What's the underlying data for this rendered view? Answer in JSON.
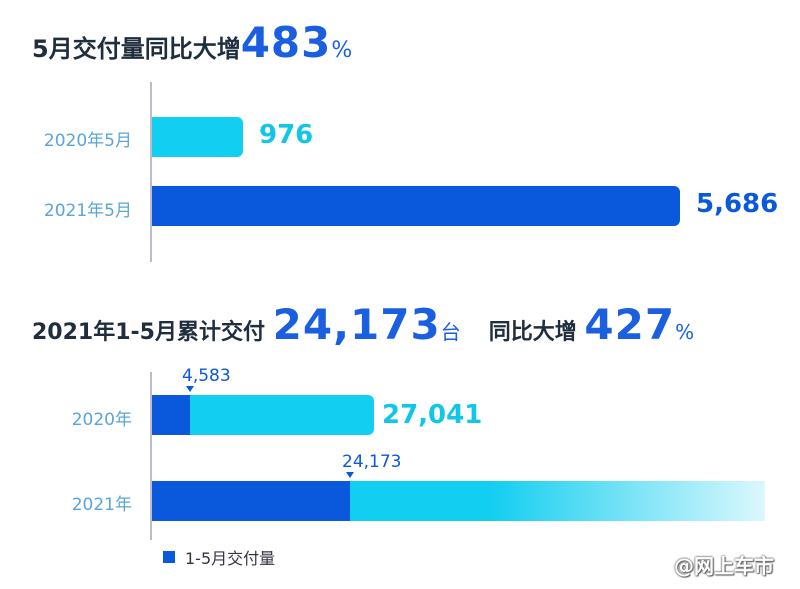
{
  "colors": {
    "accent": "#1a5fe0",
    "light_bar": "#12cef0",
    "dark_bar": "#0a58dc"
  },
  "section1": {
    "title_prefix": "5月交付量同比大增",
    "title_value": "483",
    "title_unit": "%"
  },
  "section2": {
    "title_prefix": "2021年1-5月累计交付",
    "title_value": "24,173",
    "title_unit": "台",
    "title_mid": "同比大增",
    "title_value2": "427",
    "title_unit2": "%"
  },
  "legend": {
    "label": "1-5月交付量"
  },
  "watermark": "@网上车市",
  "chart_data": [
    {
      "type": "bar",
      "orientation": "horizontal",
      "title": "5月交付量同比大增483%",
      "categories": [
        "2020年5月",
        "2021年5月"
      ],
      "values": [
        976,
        5686
      ],
      "value_labels": [
        "976",
        "5,686"
      ],
      "xlim": [
        0,
        6000
      ],
      "grid": false
    },
    {
      "type": "bar",
      "orientation": "horizontal",
      "stacked": true,
      "title": "2021年1-5月累计交付24,173台 同比大增427%",
      "categories": [
        "2020年",
        "2021年"
      ],
      "series": [
        {
          "name": "1-5月交付量",
          "values": [
            4583,
            24173
          ],
          "labels": [
            "4,583",
            "24,173"
          ]
        },
        {
          "values": [
            27041,
            null
          ],
          "labels": [
            "27,041",
            ""
          ]
        }
      ],
      "legend_position": "bottom-left",
      "grid": false
    }
  ]
}
